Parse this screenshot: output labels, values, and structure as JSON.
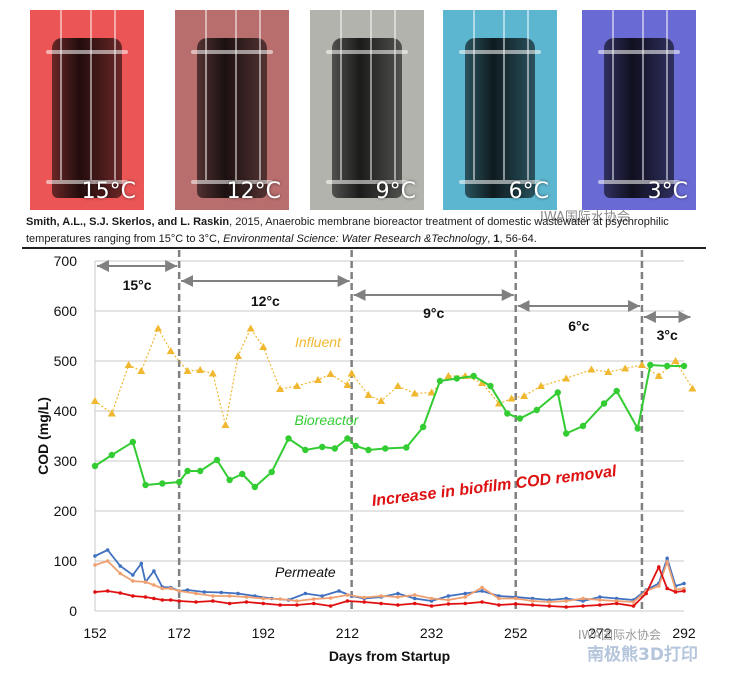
{
  "photos": [
    {
      "label": "15°C",
      "color": "#f03030"
    },
    {
      "label": "12°C",
      "color": "#b05050"
    },
    {
      "label": "9°C",
      "color": "#a8a8a0"
    },
    {
      "label": "6°C",
      "color": "#3aaccc"
    },
    {
      "label": "3°C",
      "color": "#4a4ad2"
    }
  ],
  "citation": {
    "authors": "Smith, A.L., S.J. Skerlos, and L. Raskin",
    "title_text": ", 2015, Anaerobic membrane bioreactor treatment of domestic wastewater at psychrophilic temperatures ranging from 15°C to 3°C, ",
    "journal": "Environmental Science: Water Research &Technology",
    "volume": "1",
    "pages": ", 56-64."
  },
  "watermarks": {
    "top": "IWA国际水协会",
    "bottom1": "IWA国际水协会",
    "bottom2": "南极熊3D打印"
  },
  "chart_data": {
    "type": "line",
    "xlabel": "Days from Startup",
    "ylabel": "COD (mg/L)",
    "xlim": [
      152,
      292
    ],
    "ylim": [
      0,
      700
    ],
    "xticks": [
      152,
      172,
      192,
      212,
      232,
      252,
      272,
      292
    ],
    "yticks": [
      0,
      100,
      200,
      300,
      400,
      500,
      600,
      700
    ],
    "grid": true,
    "colors": {
      "influent": "#f0b830",
      "bioreactor": "#33cc33",
      "annotation": "#dd1111",
      "divider": "#808080"
    },
    "temperature_periods": [
      {
        "label": "15°c",
        "start": 152,
        "end": 172
      },
      {
        "label": "12°c",
        "start": 172,
        "end": 213
      },
      {
        "label": "9°c",
        "start": 213,
        "end": 252
      },
      {
        "label": "6°c",
        "start": 252,
        "end": 282
      },
      {
        "label": "3°c",
        "start": 282,
        "end": 294
      }
    ],
    "annotations": {
      "influent": "Influent",
      "bioreactor": "Bioreactor",
      "permeate": "Permeate",
      "removal": "Increase in biofilm COD removal"
    },
    "series": [
      {
        "key": "influent",
        "marker": "triangle",
        "dashed": true,
        "x": [
          152,
          156,
          160,
          163,
          167,
          170,
          174,
          177,
          180,
          183,
          186,
          189,
          192,
          196,
          200,
          205,
          208,
          212,
          213,
          217,
          220,
          224,
          228,
          232,
          236,
          240,
          244,
          248,
          251,
          254,
          258,
          264,
          270,
          274,
          278,
          282,
          286,
          290,
          294
        ],
        "y": [
          420,
          395,
          492,
          480,
          565,
          520,
          480,
          482,
          475,
          372,
          510,
          565,
          528,
          444,
          450,
          462,
          474,
          452,
          475,
          432,
          420,
          450,
          435,
          437,
          470,
          470,
          456,
          415,
          425,
          430,
          450,
          465,
          483,
          478,
          485,
          492,
          470,
          500,
          445
        ]
      },
      {
        "key": "bioreactor",
        "marker": "circle",
        "dashed": false,
        "x": [
          152,
          156,
          161,
          164,
          168,
          172,
          174,
          177,
          181,
          184,
          187,
          190,
          194,
          198,
          202,
          206,
          209,
          212,
          214,
          217,
          221,
          226,
          230,
          234,
          238,
          242,
          246,
          250,
          253,
          257,
          262,
          264,
          268,
          273,
          276,
          281,
          284,
          288,
          292
        ],
        "y": [
          290,
          312,
          338,
          252,
          255,
          258,
          280,
          280,
          302,
          262,
          274,
          248,
          278,
          345,
          322,
          328,
          325,
          345,
          330,
          322,
          325,
          327,
          368,
          460,
          465,
          470,
          450,
          395,
          385,
          402,
          437,
          355,
          370,
          415,
          440,
          365,
          492,
          490,
          490
        ]
      },
      {
        "key": "permeate_blue",
        "color": "#4070c0",
        "marker": "circle-small",
        "dashed": false,
        "x": [
          152,
          155,
          158,
          161,
          163,
          164,
          166,
          168,
          170,
          172,
          174,
          178,
          182,
          186,
          190,
          194,
          198,
          202,
          206,
          210,
          213,
          216,
          220,
          224,
          228,
          232,
          236,
          240,
          244,
          248,
          252,
          256,
          260,
          264,
          268,
          272,
          276,
          280,
          283,
          286,
          288,
          290,
          292
        ],
        "y": [
          110,
          122,
          90,
          72,
          95,
          58,
          80,
          48,
          47,
          40,
          42,
          38,
          37,
          35,
          30,
          25,
          22,
          35,
          30,
          40,
          30,
          25,
          28,
          35,
          25,
          20,
          30,
          35,
          40,
          30,
          28,
          25,
          22,
          25,
          20,
          28,
          25,
          22,
          42,
          55,
          105,
          50,
          55
        ]
      },
      {
        "key": "permeate_orange",
        "color": "#f0a070",
        "marker": "circle-small",
        "dashed": false,
        "x": [
          152,
          155,
          158,
          161,
          164,
          166,
          168,
          170,
          172,
          176,
          180,
          184,
          188,
          192,
          196,
          200,
          204,
          208,
          212,
          216,
          220,
          224,
          228,
          232,
          236,
          240,
          244,
          248,
          252,
          256,
          260,
          264,
          268,
          272,
          276,
          280,
          283,
          286,
          288,
          290,
          292
        ],
        "y": [
          92,
          100,
          75,
          60,
          58,
          52,
          45,
          45,
          40,
          35,
          30,
          30,
          28,
          25,
          24,
          20,
          24,
          26,
          32,
          27,
          30,
          28,
          32,
          25,
          22,
          28,
          47,
          25,
          25,
          20,
          18,
          20,
          25,
          22,
          20,
          18,
          40,
          50,
          98,
          43,
          45
        ]
      },
      {
        "key": "permeate_red",
        "color": "#e01010",
        "marker": "circle-small",
        "dashed": false,
        "x": [
          152,
          155,
          158,
          161,
          164,
          166,
          168,
          170,
          172,
          176,
          180,
          184,
          188,
          192,
          196,
          200,
          204,
          208,
          212,
          216,
          220,
          224,
          228,
          232,
          236,
          240,
          244,
          248,
          252,
          256,
          260,
          264,
          268,
          272,
          276,
          280,
          283,
          286,
          288,
          290,
          292
        ],
        "y": [
          38,
          40,
          36,
          30,
          28,
          25,
          22,
          22,
          20,
          18,
          20,
          15,
          18,
          15,
          12,
          12,
          15,
          10,
          20,
          18,
          15,
          12,
          15,
          10,
          14,
          15,
          18,
          12,
          14,
          12,
          10,
          8,
          10,
          12,
          15,
          10,
          35,
          88,
          45,
          38,
          40
        ]
      }
    ]
  }
}
